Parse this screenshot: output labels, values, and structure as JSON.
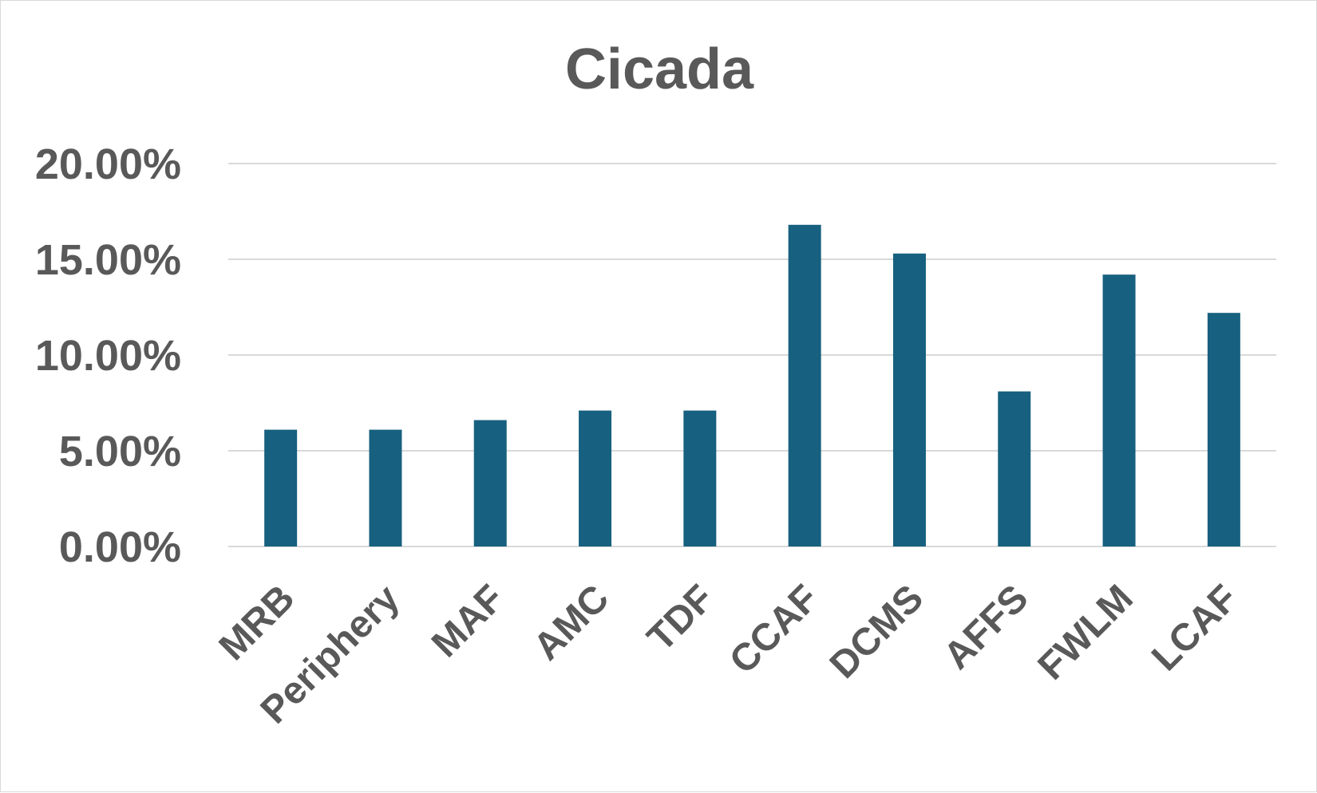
{
  "chart_data": {
    "type": "bar",
    "title": "Cicada",
    "xlabel": "",
    "ylabel": "",
    "categories": [
      "MRB",
      "Periphery",
      "MAF",
      "AMC",
      "TDF",
      "CCAF",
      "DCMS",
      "AFFS",
      "FWLM",
      "LCAF"
    ],
    "values": [
      0.061,
      0.061,
      0.066,
      0.071,
      0.071,
      0.168,
      0.153,
      0.081,
      0.142,
      0.122
    ],
    "ylim": [
      0,
      0.2
    ],
    "yticks": [
      0,
      0.05,
      0.1,
      0.15,
      0.2
    ],
    "ytick_labels": [
      "0.00%",
      "5.00%",
      "10.00%",
      "15.00%",
      "20.00%"
    ],
    "grid": true,
    "legend": "none",
    "bar_color": "#17607f",
    "grid_color": "#d9d9d9",
    "text_color": "#595959"
  }
}
